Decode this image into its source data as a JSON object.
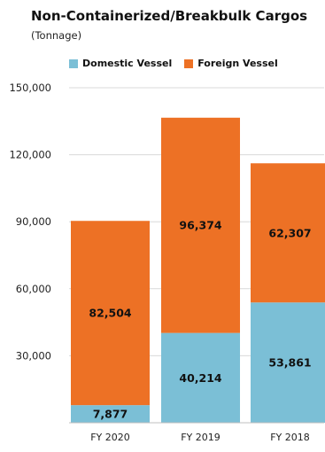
{
  "chart_data": {
    "type": "bar",
    "stacked": true,
    "title": "Non-Containerized/Breakbulk  Cargos",
    "subtitle": "(Tonnage)",
    "xlabel": "",
    "ylabel": "",
    "categories": [
      "FY 2020",
      "FY 2019",
      "FY 2018"
    ],
    "series": [
      {
        "name": "Domestic Vessel",
        "color": "#7bbfd6",
        "values": [
          7877,
          40214,
          53861
        ],
        "labels": [
          "7,877",
          "40,214",
          "53,861"
        ]
      },
      {
        "name": "Foreign Vessel",
        "color": "#ed7125",
        "values": [
          82504,
          96374,
          62307
        ],
        "labels": [
          "82,504",
          "96,374",
          "62,307"
        ]
      }
    ],
    "ylim": [
      0,
      150000
    ],
    "yticks": [
      30000,
      60000,
      90000,
      120000,
      150000
    ],
    "ytick_labels": [
      "30,000",
      "60,000",
      "90,000",
      "120,000",
      "150,000"
    ],
    "grid": true,
    "legend_position": "top"
  }
}
